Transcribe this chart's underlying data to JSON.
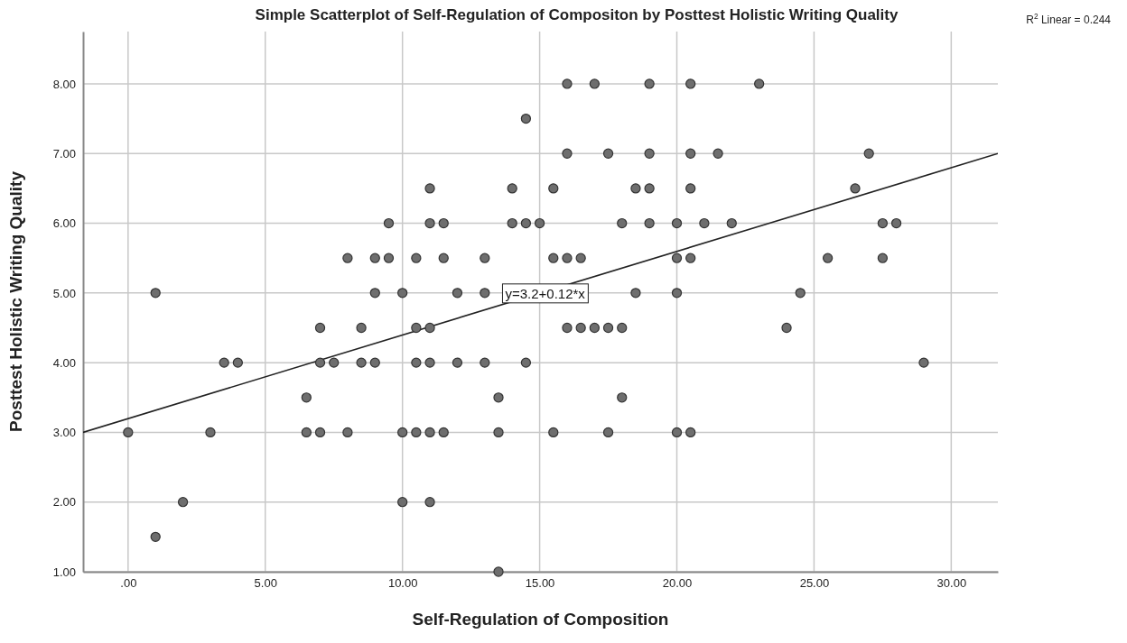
{
  "chart_data": {
    "type": "scatter",
    "title": "Simple Scatterplot of Self-Regulation of Compositon by Posttest Holistic Writing Quality",
    "xlabel": "Self-Regulation of Composition",
    "ylabel": "Posttest Holistic Writing Quality",
    "xlim": [
      -1.64,
      31.7
    ],
    "ylim": [
      1,
      8.75
    ],
    "xticks": [
      {
        "value": 0,
        "label": ".00"
      },
      {
        "value": 5,
        "label": "5.00"
      },
      {
        "value": 10,
        "label": "10.00"
      },
      {
        "value": 15,
        "label": "15.00"
      },
      {
        "value": 20,
        "label": "20.00"
      },
      {
        "value": 25,
        "label": "25.00"
      },
      {
        "value": 30,
        "label": "30.00"
      }
    ],
    "yticks": [
      {
        "value": 1,
        "label": "1.00"
      },
      {
        "value": 2,
        "label": "2.00"
      },
      {
        "value": 3,
        "label": "3.00"
      },
      {
        "value": 4,
        "label": "4.00"
      },
      {
        "value": 5,
        "label": "5.00"
      },
      {
        "value": 6,
        "label": "6.00"
      },
      {
        "value": 7,
        "label": "7.00"
      },
      {
        "value": 8,
        "label": "8.00"
      }
    ],
    "grid": true,
    "marker": "circle",
    "series": [
      {
        "color": "#6e6e6e",
        "x": [
          16,
          17,
          19,
          20.5,
          23,
          14.5,
          16,
          17.5,
          19,
          20.5,
          21.5,
          27,
          11,
          14,
          15.5,
          18.5,
          19,
          20.5,
          26.5,
          9.5,
          11,
          11.5,
          14,
          14.5,
          15,
          18,
          19,
          20,
          21,
          22,
          27.5,
          28,
          8,
          9,
          9.5,
          10.5,
          11.5,
          13,
          15.5,
          16,
          16.5,
          20,
          20.5,
          25.5,
          27.5,
          1,
          9,
          10,
          12,
          13,
          18.5,
          20,
          24.5,
          7,
          8.5,
          10.5,
          11,
          16,
          16.5,
          17,
          17.5,
          18,
          24,
          3.5,
          4,
          7,
          7.5,
          8.5,
          9,
          10.5,
          11,
          12,
          13,
          14.5,
          29,
          6.5,
          13.5,
          18,
          0,
          3,
          6.5,
          7,
          8,
          10,
          10.5,
          11,
          11.5,
          13.5,
          15.5,
          17.5,
          20,
          20.5,
          2,
          10,
          11,
          1,
          13.5
        ],
        "values": [
          8,
          8,
          8,
          8,
          8,
          7.5,
          7,
          7,
          7,
          7,
          7,
          7,
          6.5,
          6.5,
          6.5,
          6.5,
          6.5,
          6.5,
          6.5,
          6,
          6,
          6,
          6,
          6,
          6,
          6,
          6,
          6,
          6,
          6,
          6,
          6,
          5.5,
          5.5,
          5.5,
          5.5,
          5.5,
          5.5,
          5.5,
          5.5,
          5.5,
          5.5,
          5.5,
          5.5,
          5.5,
          5,
          5,
          5,
          5,
          5,
          5,
          5,
          5,
          4.5,
          4.5,
          4.5,
          4.5,
          4.5,
          4.5,
          4.5,
          4.5,
          4.5,
          4.5,
          4,
          4,
          4,
          4,
          4,
          4,
          4,
          4,
          4,
          4,
          4,
          4,
          3.5,
          3.5,
          3.5,
          3,
          3,
          3,
          3,
          3,
          3,
          3,
          3,
          3,
          3,
          3,
          3,
          3,
          3,
          2,
          2,
          2,
          1.5,
          1
        ]
      },
      {
        "type": "line",
        "color": "#222222",
        "marker": "none",
        "x": [
          -1.64,
          31.7
        ],
        "values": [
          3.0,
          7.0
        ]
      }
    ],
    "annotations": [
      {
        "text": "y=3.2+0.12*x",
        "x": 15.2,
        "y": 5
      },
      "R$^{2}$ Linear = 0.244"
    ]
  }
}
